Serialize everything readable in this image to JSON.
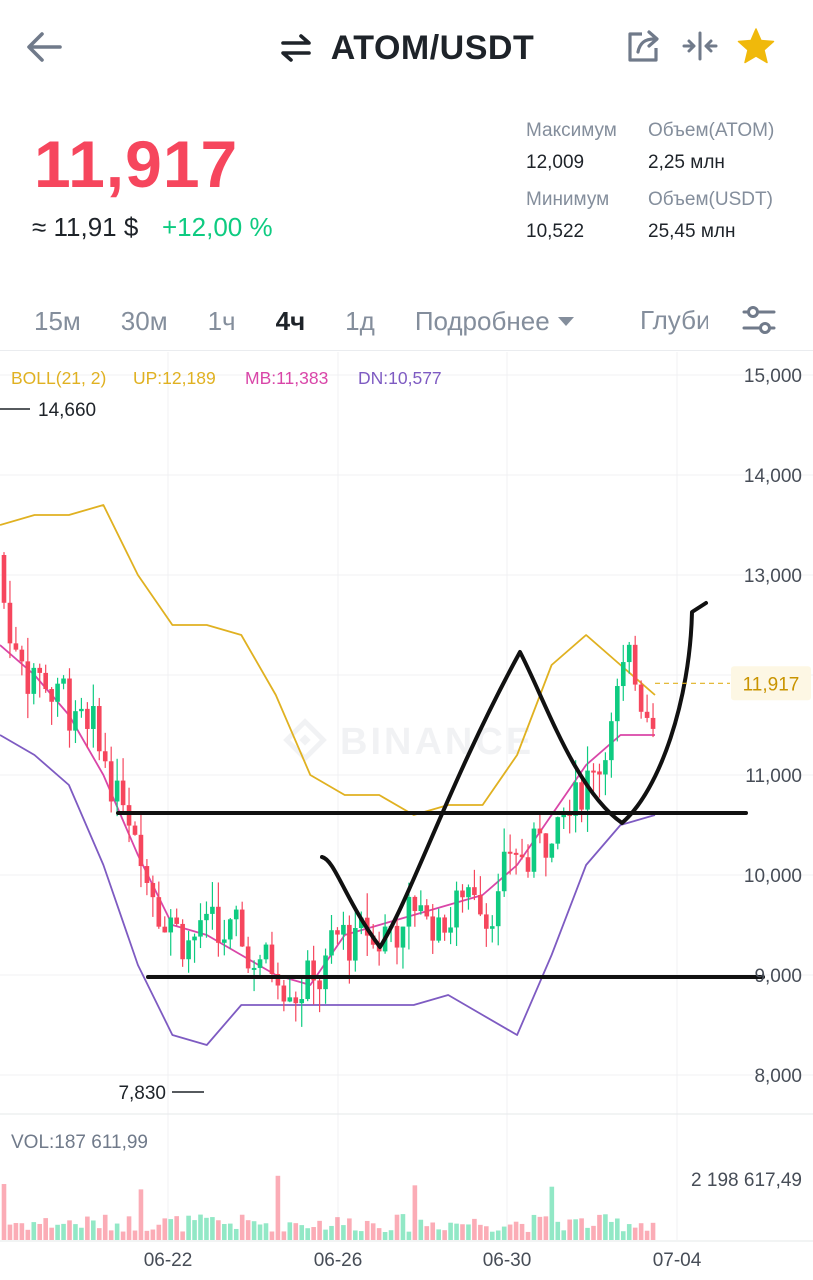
{
  "header": {
    "title": "ATOM/USDT"
  },
  "ticker": {
    "price": "11,917",
    "approx_usd": "≈ 11,91 $",
    "change": "+12,00 %",
    "high_label": "Максимум",
    "high_value": "12,009",
    "low_label": "Минимум",
    "low_value": "10,522",
    "vol_base_label": "Объем(ATOM)",
    "vol_base_value": "2,25 млн",
    "vol_quote_label": "Объем(USDT)",
    "vol_quote_value": "25,45 млн"
  },
  "intervals": {
    "items": [
      "15м",
      "30м",
      "1ч",
      "4ч",
      "1д"
    ],
    "active": "4ч",
    "more_label": "Подробнее",
    "depth_label": "Глуби"
  },
  "indicator": {
    "boll": "BOLL(21, 2)",
    "up": "UP:12,189",
    "mb": "MB:11,383",
    "dn": "DN:10,577",
    "vol": "VOL:187 611,99",
    "vol_axis_max": "2 198 617,49"
  },
  "chart_data": {
    "type": "candlestick",
    "pair": "ATOM/USDT",
    "interval": "4ч",
    "y_ticks": [
      "15,000",
      "14,000",
      "13,000",
      "11,000",
      "10,000",
      "9,000",
      "8,000"
    ],
    "ylim": [
      8.0,
      15.0
    ],
    "x_ticks": [
      "06-22",
      "06-26",
      "06-30",
      "07-04"
    ],
    "last_price_marker": "11,917",
    "max_marker": "14,660",
    "min_marker": "7,830",
    "bollinger": {
      "up": [
        13.5,
        13.6,
        13.6,
        13.7,
        13.0,
        12.5,
        12.5,
        12.4,
        11.8,
        11.0,
        10.8,
        10.8,
        10.6,
        10.7,
        10.7,
        11.2,
        12.1,
        12.4,
        12.1,
        11.8
      ],
      "mb": [
        12.3,
        12.0,
        11.6,
        11.0,
        10.2,
        9.5,
        9.4,
        9.2,
        9.0,
        8.9,
        9.4,
        9.5,
        9.6,
        9.7,
        9.8,
        10.1,
        10.6,
        11.1,
        11.4,
        11.4
      ],
      "dn": [
        11.4,
        11.2,
        10.9,
        10.1,
        9.1,
        8.4,
        8.3,
        8.7,
        8.7,
        8.7,
        8.7,
        8.7,
        8.7,
        8.8,
        8.6,
        8.4,
        9.2,
        10.1,
        10.5,
        10.6
      ]
    },
    "drawings": {
      "support_level": 8.98,
      "resistance_level": 10.62
    }
  },
  "colors": {
    "up": "#0ecb81",
    "down": "#f6465d",
    "boll_up": "#e0b121",
    "boll_mb": "#d946a8",
    "boll_dn": "#7e5bc2",
    "grid": "#f0f1f3"
  }
}
